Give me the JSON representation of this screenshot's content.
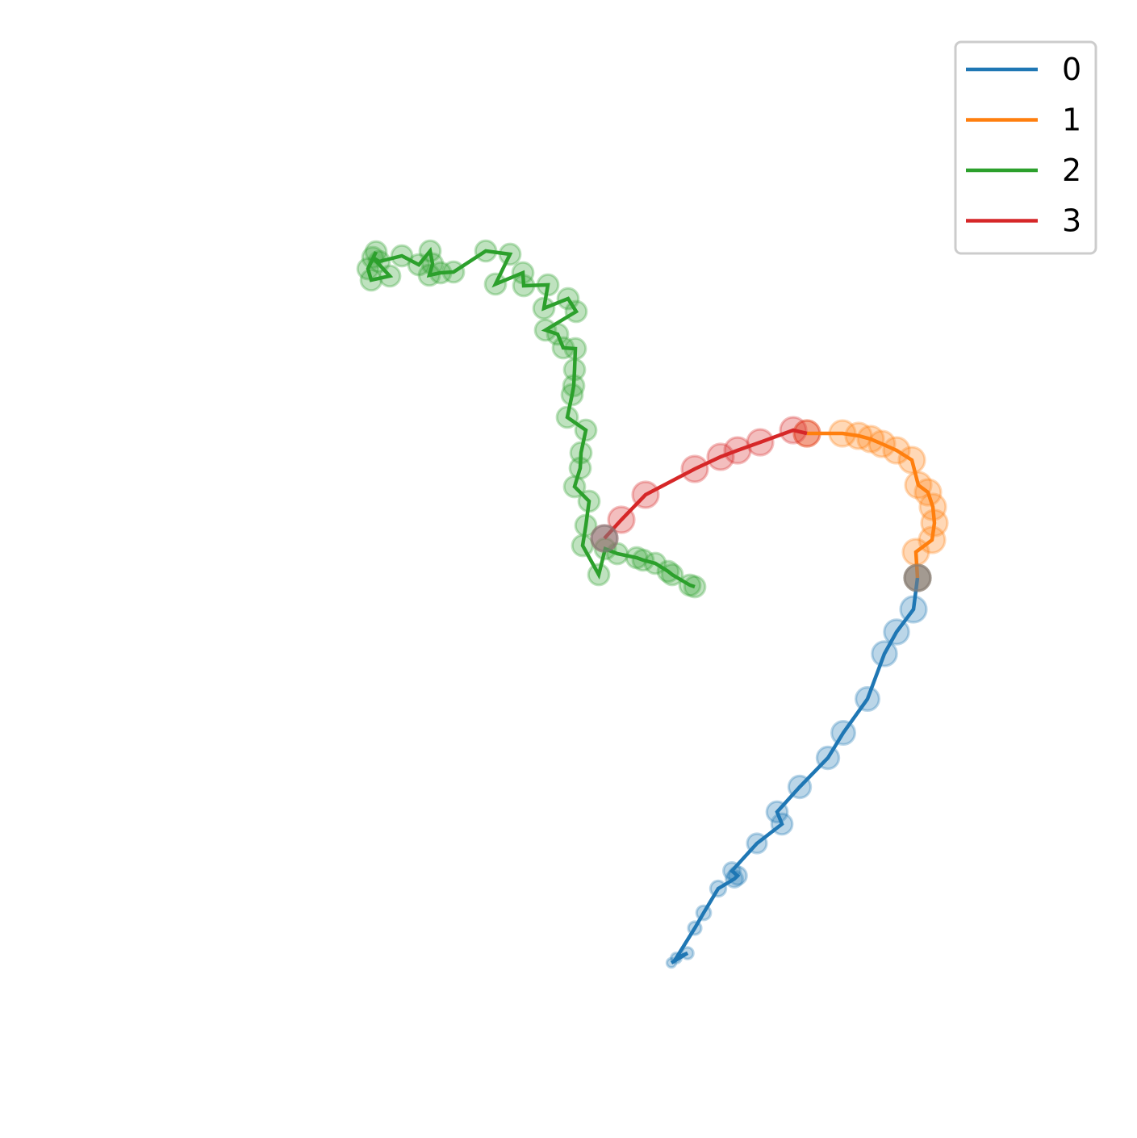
{
  "chart_data": {
    "type": "line",
    "title": "",
    "xlabel": "",
    "ylabel": "",
    "axes_visible": false,
    "grid": false,
    "legend_position": "top-right",
    "marker_alpha": 0.3,
    "junction_color": "#808080",
    "series": [
      {
        "name": "0",
        "color": "#1f77b4",
        "points": [
          [
            832,
            1193
          ],
          [
            852,
            1181
          ],
          [
            838,
            1187
          ],
          [
            861,
            1150
          ],
          [
            872,
            1131
          ],
          [
            890,
            1101
          ],
          [
            910,
            1089
          ],
          [
            914,
            1085
          ],
          [
            907,
            1079
          ],
          [
            938,
            1045
          ],
          [
            969,
            1021
          ],
          [
            963,
            1006
          ],
          [
            991,
            975
          ],
          [
            1026,
            939
          ],
          [
            1045,
            908
          ],
          [
            1075,
            866
          ],
          [
            1096,
            810
          ],
          [
            1111,
            783
          ],
          [
            1132,
            755
          ],
          [
            1137,
            716
          ]
        ],
        "sizes": [
          0.35,
          0.45,
          0.4,
          0.5,
          0.55,
          0.6,
          0.65,
          0.7,
          0.65,
          0.75,
          0.8,
          0.8,
          0.85,
          0.85,
          0.9,
          0.9,
          0.95,
          0.95,
          1.0,
          1.0
        ]
      },
      {
        "name": "1",
        "color": "#ff7f0e",
        "points": [
          [
            1137,
            716
          ],
          [
            1135,
            684
          ],
          [
            1155,
            669
          ],
          [
            1158,
            648
          ],
          [
            1156,
            628
          ],
          [
            1150,
            610
          ],
          [
            1138,
            601
          ],
          [
            1130,
            570
          ],
          [
            1111,
            558
          ],
          [
            1093,
            550
          ],
          [
            1079,
            544
          ],
          [
            1064,
            540
          ],
          [
            1044,
            537
          ],
          [
            1000,
            537
          ]
        ],
        "sizes": [
          1.0,
          1.0,
          1.0,
          1.0,
          1.0,
          1.0,
          1.0,
          1.0,
          1.0,
          1.0,
          1.0,
          1.0,
          1.0,
          1.0
        ]
      },
      {
        "name": "2",
        "color": "#2ca02c",
        "points": [
          [
            861,
            727
          ],
          [
            855,
            725
          ],
          [
            833,
            712
          ],
          [
            828,
            708
          ],
          [
            812,
            698
          ],
          [
            797,
            694
          ],
          [
            789,
            691
          ],
          [
            765,
            686
          ],
          [
            750,
            680
          ],
          [
            742,
            712
          ],
          [
            722,
            676
          ],
          [
            726,
            651
          ],
          [
            730,
            621
          ],
          [
            712,
            603
          ],
          [
            719,
            580
          ],
          [
            720,
            561
          ],
          [
            726,
            533
          ],
          [
            703,
            517
          ],
          [
            709,
            489
          ],
          [
            711,
            478
          ],
          [
            712,
            458
          ],
          [
            713,
            432
          ],
          [
            698,
            431
          ],
          [
            691,
            414
          ],
          [
            676,
            409
          ],
          [
            714,
            386
          ],
          [
            704,
            370
          ],
          [
            674,
            382
          ],
          [
            679,
            353
          ],
          [
            649,
            354
          ],
          [
            648,
            338
          ],
          [
            614,
            352
          ],
          [
            632,
            315
          ],
          [
            602,
            311
          ],
          [
            562,
            337
          ],
          [
            546,
            338
          ],
          [
            532,
            341
          ],
          [
            536,
            327
          ],
          [
            533,
            311
          ],
          [
            519,
            328
          ],
          [
            498,
            317
          ],
          [
            470,
            324
          ],
          [
            462,
            319
          ],
          [
            483,
            342
          ],
          [
            460,
            347
          ],
          [
            456,
            333
          ],
          [
            466,
            312
          ]
        ],
        "sizes": [
          0.8,
          0.8,
          0.8,
          0.8,
          0.8,
          0.8,
          0.8,
          0.8,
          0.8,
          0.8,
          0.8,
          0.8,
          0.8,
          0.8,
          0.8,
          0.8,
          0.8,
          0.8,
          0.8,
          0.8,
          0.8,
          0.8,
          0.8,
          0.8,
          0.8,
          0.8,
          0.8,
          0.8,
          0.8,
          0.8,
          0.8,
          0.8,
          0.8,
          0.8,
          0.8,
          0.8,
          0.8,
          0.8,
          0.8,
          0.8,
          0.8,
          0.8,
          0.8,
          0.8,
          0.8,
          0.8,
          0.8
        ]
      },
      {
        "name": "3",
        "color": "#d62728",
        "points": [
          [
            749,
            667
          ],
          [
            770,
            644
          ],
          [
            800,
            613
          ],
          [
            861,
            581
          ],
          [
            893,
            566
          ],
          [
            914,
            558
          ],
          [
            942,
            548
          ],
          [
            983,
            533
          ],
          [
            1000,
            537
          ]
        ],
        "sizes": [
          1.0,
          1.0,
          1.0,
          1.0,
          1.0,
          1.0,
          1.0,
          1.0,
          1.0
        ]
      }
    ],
    "junctions": [
      [
        1137,
        716
      ],
      [
        749,
        667
      ]
    ]
  }
}
